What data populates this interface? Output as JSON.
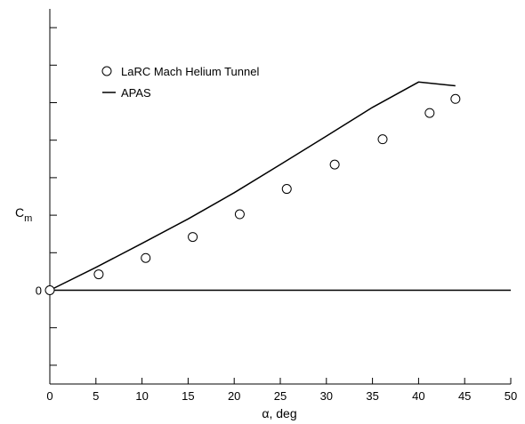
{
  "chart_data": {
    "type": "line",
    "xlabel": "α, deg",
    "ylabel": "C",
    "ylabel_subscript": "m",
    "xlim": [
      0,
      50
    ],
    "ylim": [
      -5,
      15
    ],
    "x_ticks": [
      0,
      5,
      10,
      15,
      20,
      25,
      30,
      35,
      40,
      45,
      50
    ],
    "y_ticks": [
      -4,
      -2,
      0,
      2,
      4,
      6,
      8,
      10,
      12,
      14
    ],
    "y_tick_labels_shown": [
      {
        "value": 0,
        "label": "0"
      }
    ],
    "grid": false,
    "legend_position": "top-left",
    "reference_line": {
      "y": 0
    },
    "series": [
      {
        "name": "LaRC Mach Helium Tunnel",
        "style": "open-circle-markers",
        "x": [
          0,
          5.3,
          10.4,
          15.5,
          20.6,
          25.7,
          30.9,
          36.1,
          41.2,
          44.0
        ],
        "y": [
          0,
          0.85,
          1.72,
          2.84,
          4.05,
          5.4,
          6.7,
          8.05,
          9.45,
          10.2
        ]
      },
      {
        "name": "APAS",
        "style": "solid-line",
        "x": [
          0,
          5,
          10,
          15,
          20,
          25,
          30,
          35,
          40,
          44
        ],
        "y": [
          0,
          1.22,
          2.5,
          3.8,
          5.2,
          6.7,
          8.22,
          9.75,
          11.1,
          10.9
        ]
      }
    ]
  }
}
